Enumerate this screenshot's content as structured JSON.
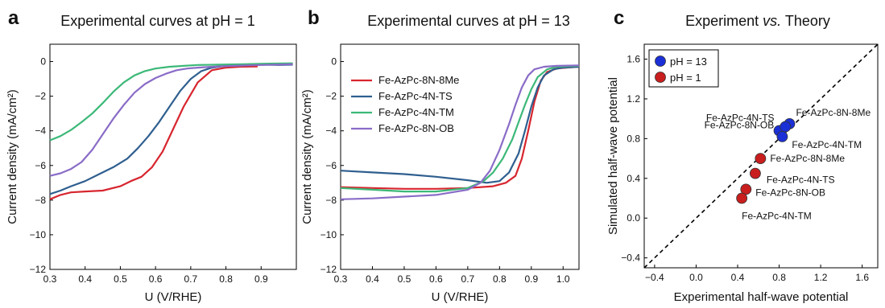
{
  "chart_data": [
    {
      "panel": "a",
      "type": "line",
      "title": "Experimental curves at pH = 1",
      "xlabel": "U (V/RHE)",
      "ylabel": "Current density (mA/cm²)",
      "xlim": [
        0.3,
        1.0
      ],
      "ylim": [
        -12,
        1
      ],
      "xticks": [
        "0.3",
        "0.4",
        "0.5",
        "0.6",
        "0.7",
        "0.8",
        "0.9"
      ],
      "yticks": [
        "0",
        "−2",
        "−4",
        "−6",
        "−8",
        "−10",
        "−12"
      ],
      "series": [
        {
          "color": "#d7262f",
          "x": [
            0.3,
            0.33,
            0.36,
            0.4,
            0.45,
            0.5,
            0.53,
            0.56,
            0.59,
            0.62,
            0.65,
            0.68,
            0.72,
            0.76,
            0.8,
            0.84,
            0.89
          ],
          "y": [
            -7.95,
            -7.7,
            -7.55,
            -7.5,
            -7.45,
            -7.2,
            -6.9,
            -6.65,
            -6.1,
            -5.2,
            -3.9,
            -2.6,
            -1.2,
            -0.5,
            -0.35,
            -0.3,
            -0.28
          ]
        },
        {
          "color": "#2f5f8f",
          "x": [
            0.3,
            0.33,
            0.36,
            0.4,
            0.44,
            0.48,
            0.52,
            0.55,
            0.58,
            0.61,
            0.64,
            0.67,
            0.7,
            0.73,
            0.76,
            0.8,
            0.86,
            0.9,
            0.95,
            0.99
          ],
          "y": [
            -7.65,
            -7.45,
            -7.2,
            -6.9,
            -6.5,
            -6.1,
            -5.6,
            -5.0,
            -4.3,
            -3.5,
            -2.6,
            -1.7,
            -1.0,
            -0.55,
            -0.35,
            -0.25,
            -0.2,
            -0.18,
            -0.2,
            -0.18
          ]
        },
        {
          "color": "#3cb878",
          "x": [
            0.3,
            0.33,
            0.36,
            0.39,
            0.42,
            0.45,
            0.48,
            0.51,
            0.54,
            0.57,
            0.6,
            0.64,
            0.68,
            0.72,
            0.78,
            0.85,
            0.92,
            0.99
          ],
          "y": [
            -4.55,
            -4.3,
            -3.95,
            -3.5,
            -3.0,
            -2.4,
            -1.75,
            -1.2,
            -0.8,
            -0.55,
            -0.4,
            -0.3,
            -0.25,
            -0.2,
            -0.18,
            -0.15,
            -0.12,
            -0.1
          ]
        },
        {
          "color": "#8a6cc7",
          "x": [
            0.3,
            0.33,
            0.36,
            0.39,
            0.42,
            0.45,
            0.48,
            0.51,
            0.54,
            0.57,
            0.6,
            0.63,
            0.66,
            0.69,
            0.72,
            0.76,
            0.82,
            0.9,
            0.99
          ],
          "y": [
            -6.6,
            -6.45,
            -6.2,
            -5.8,
            -5.1,
            -4.2,
            -3.3,
            -2.5,
            -1.8,
            -1.3,
            -0.95,
            -0.7,
            -0.5,
            -0.4,
            -0.35,
            -0.3,
            -0.25,
            -0.2,
            -0.15
          ]
        }
      ]
    },
    {
      "panel": "b",
      "type": "line",
      "title": "Experimental curves at pH = 13",
      "xlabel": "U (V/RHE)",
      "ylabel": "Current density (mA/cm²)",
      "xlim": [
        0.3,
        1.05
      ],
      "ylim": [
        -12,
        1
      ],
      "xticks": [
        "0.3",
        "0.4",
        "0.5",
        "0.6",
        "0.7",
        "0.8",
        "0.9",
        "1.0"
      ],
      "yticks": [
        "0",
        "−2",
        "−4",
        "−6",
        "−8",
        "−10",
        "−12"
      ],
      "legend": "upper-left",
      "series": [
        {
          "name": "Fe-AzPc-8N-8Me",
          "color": "#d7262f",
          "x": [
            0.3,
            0.4,
            0.5,
            0.6,
            0.7,
            0.78,
            0.82,
            0.85,
            0.87,
            0.89,
            0.91,
            0.93,
            0.95,
            0.98,
            1.01,
            1.05
          ],
          "y": [
            -7.25,
            -7.3,
            -7.35,
            -7.35,
            -7.3,
            -7.2,
            -7.0,
            -6.6,
            -5.6,
            -4.0,
            -2.3,
            -1.1,
            -0.6,
            -0.4,
            -0.35,
            -0.3
          ]
        },
        {
          "name": "Fe-AzPc-4N-TS",
          "color": "#2f5f8f",
          "x": [
            0.3,
            0.4,
            0.5,
            0.6,
            0.7,
            0.76,
            0.8,
            0.83,
            0.86,
            0.88,
            0.9,
            0.92,
            0.94,
            0.97,
            1.0,
            1.05
          ],
          "y": [
            -6.3,
            -6.4,
            -6.5,
            -6.65,
            -6.85,
            -7.0,
            -6.9,
            -6.4,
            -5.3,
            -4.0,
            -2.6,
            -1.5,
            -0.8,
            -0.45,
            -0.35,
            -0.3
          ]
        },
        {
          "name": "Fe-AzPc-4N-TM",
          "color": "#3cb878",
          "x": [
            0.3,
            0.4,
            0.5,
            0.6,
            0.7,
            0.75,
            0.78,
            0.81,
            0.84,
            0.86,
            0.88,
            0.9,
            0.92,
            0.95,
            0.98,
            1.05
          ],
          "y": [
            -7.3,
            -7.4,
            -7.5,
            -7.5,
            -7.3,
            -6.9,
            -6.4,
            -5.6,
            -4.5,
            -3.5,
            -2.5,
            -1.6,
            -0.9,
            -0.45,
            -0.3,
            -0.25
          ]
        },
        {
          "name": "Fe-AzPc-8N-OB",
          "color": "#8a6cc7",
          "x": [
            0.3,
            0.4,
            0.5,
            0.6,
            0.7,
            0.74,
            0.77,
            0.8,
            0.83,
            0.85,
            0.87,
            0.89,
            0.91,
            0.94,
            0.98,
            1.05
          ],
          "y": [
            -7.95,
            -7.9,
            -7.8,
            -7.7,
            -7.4,
            -7.0,
            -6.3,
            -5.1,
            -3.6,
            -2.5,
            -1.5,
            -0.8,
            -0.45,
            -0.3,
            -0.25,
            -0.22
          ]
        }
      ]
    },
    {
      "panel": "c",
      "type": "scatter",
      "title_main": "Experiment",
      "title_vs": "vs.",
      "title_end": "Theory",
      "xlabel": "Experimental half-wave potential",
      "ylabel": "Simulated half-wave potential",
      "xlim": [
        -0.5,
        1.75
      ],
      "ylim": [
        -0.5,
        1.75
      ],
      "xticks": [
        "−0.4",
        "0.0",
        "0.4",
        "0.8",
        "1.2",
        "1.6"
      ],
      "yticks": [
        "−0.4",
        "0.0",
        "0.4",
        "0.8",
        "1.2",
        "1.6"
      ],
      "legend": "upper-left",
      "diagonal": true,
      "series": [
        {
          "name": "pH = 13",
          "color": "#1b2fd6",
          "points": [
            {
              "label": "Fe-AzPc-4N-TS",
              "x": 0.8,
              "y": 0.88
            },
            {
              "label": "Fe-AzPc-8N-8Me",
              "x": 0.9,
              "y": 0.95
            },
            {
              "label": "Fe-AzPc-8N-OB",
              "x": 0.86,
              "y": 0.92
            },
            {
              "label": "Fe-AzPc-4N-TM",
              "x": 0.83,
              "y": 0.82
            }
          ]
        },
        {
          "name": "pH = 1",
          "color": "#c81e1e",
          "points": [
            {
              "label": "Fe-AzPc-8N-8Me",
              "x": 0.62,
              "y": 0.6
            },
            {
              "label": "Fe-AzPc-4N-TS",
              "x": 0.57,
              "y": 0.45
            },
            {
              "label": "Fe-AzPc-8N-OB",
              "x": 0.48,
              "y": 0.29
            },
            {
              "label": "Fe-AzPc-4N-TM",
              "x": 0.44,
              "y": 0.2
            }
          ]
        }
      ]
    }
  ]
}
